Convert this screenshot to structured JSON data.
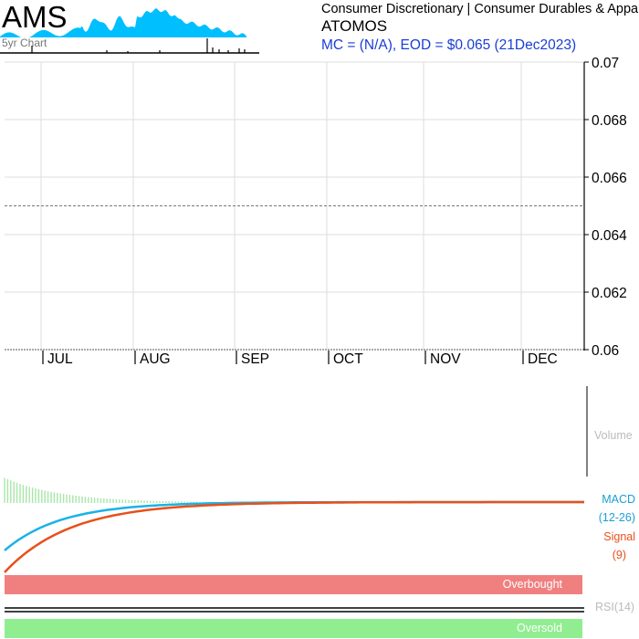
{
  "header": {
    "ticker": "AMS",
    "sector_line": "Consumer Discretionary | Consumer Durables & Apparel",
    "company_name": "ATOMOS",
    "mc_eod_line": "MC = (N/A), EOD = $0.065 (21Dec2023)",
    "thumbnail_caption": "5yr Chart"
  },
  "colors": {
    "price_line": "#555555",
    "macd_line": "#1ab2e8",
    "signal_line": "#e8501a",
    "histogram": "#a8e6a8",
    "overbought_band": "#f08080",
    "oversold_band": "#90ee90",
    "thumbnail_fill": "#00bfff",
    "volume_label": "#bbbbbb"
  },
  "chart_data": [
    {
      "type": "line",
      "name": "price-panel",
      "ylim": [
        0.06,
        0.07
      ],
      "yticks": [
        "0.06",
        "0.062",
        "0.064",
        "0.066",
        "0.068",
        "0.07"
      ],
      "months": [
        "JUL",
        "AUG",
        "SEP",
        "OCT",
        "NOV",
        "DEC"
      ],
      "reference_value": 0.065,
      "grid": true
    },
    {
      "type": "line",
      "name": "macd-panel",
      "labels": {
        "macd": "MACD",
        "macd_params": "(12-26)",
        "signal": "Signal",
        "signal_params": "(9)"
      }
    },
    {
      "type": "line",
      "name": "rsi-panel",
      "labels": {
        "rsi": "RSI(14)",
        "overbought": "Overbought",
        "oversold": "Oversold"
      }
    }
  ],
  "volume_label": "Volume"
}
